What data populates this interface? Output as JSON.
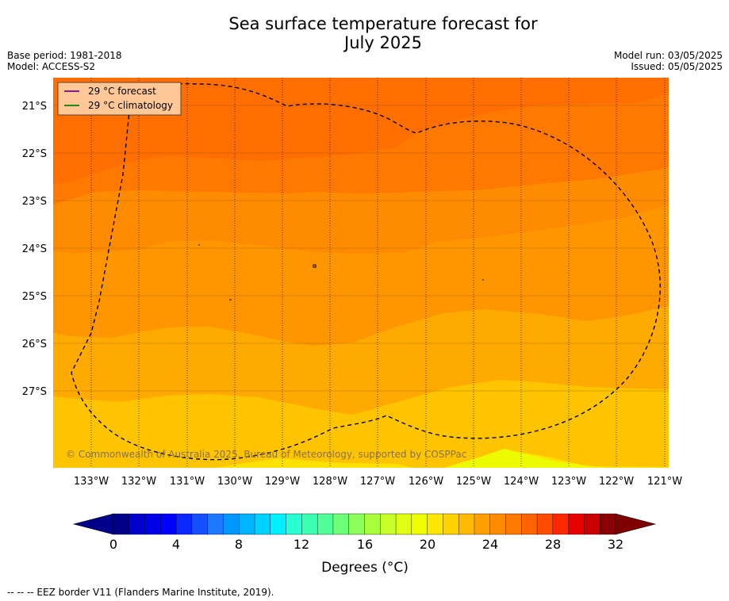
{
  "title_line1": "Sea surface temperature forecast for",
  "title_line2": "July 2025",
  "meta_left": [
    "Base period: 1981-2018",
    "Model: ACCESS-S2"
  ],
  "meta_right": [
    "Model run: 03/05/2025",
    "Issued: 05/05/2025"
  ],
  "legend": [
    {
      "label": "29 °C  forecast",
      "color": "#800080"
    },
    {
      "label": "29 °C  climatology",
      "color": "#008000"
    }
  ],
  "lat_ticks": [
    "21°S",
    "22°S",
    "23°S",
    "24°S",
    "25°S",
    "26°S",
    "27°S"
  ],
  "lon_ticks": [
    "133°W",
    "132°W",
    "131°W",
    "130°W",
    "129°W",
    "128°W",
    "127°W",
    "126°W",
    "125°W",
    "124°W",
    "123°W",
    "122°W",
    "121°W"
  ],
  "copyright": "© Commonwealth of Australia 2025, Bureau of Meteorology, supported by COSPPac",
  "colorbar": {
    "ticks": [
      "0",
      "4",
      "8",
      "12",
      "16",
      "20",
      "24",
      "28",
      "32"
    ],
    "label": "Degrees (°C)",
    "colors": [
      "#00008b",
      "#0000cd",
      "#0000e6",
      "#0000ff",
      "#0a28ff",
      "#1450ff",
      "#1e78ff",
      "#0096ff",
      "#00b4ff",
      "#00d2ff",
      "#00f0ff",
      "#28ffd2",
      "#3cffb4",
      "#50ff96",
      "#6eff78",
      "#8cff5a",
      "#aaff3c",
      "#c8ff28",
      "#e1ff14",
      "#f0ff00",
      "#ffe600",
      "#ffd200",
      "#ffb900",
      "#ffa000",
      "#ff8c00",
      "#ff7800",
      "#ff6400",
      "#ff4b00",
      "#ff2800",
      "#e60000",
      "#c80000",
      "#8b0000"
    ],
    "under": "#00008b",
    "over": "#800000"
  },
  "footer": "--  --  -- EEZ border V11 (Flanders Marine Institute, 2019)."
}
